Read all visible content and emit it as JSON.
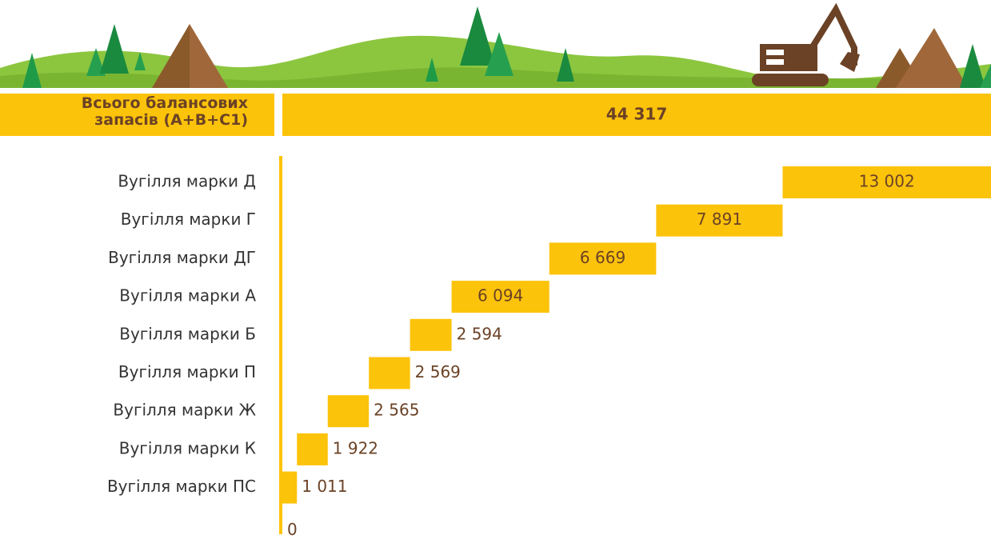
{
  "chart_data": {
    "type": "waterfall",
    "total": {
      "label": "Всього балансових запасів (А+В+С1)",
      "value": 44317,
      "value_label": "44 317"
    },
    "categories": [
      "Вугілля марки Д",
      "Вугілля марки Г",
      "Вугілля марки ДГ",
      "Вугілля марки А",
      "Вугілля марки Б",
      "Вугілля марки П",
      "Вугілля марки Ж",
      "Вугілля марки К",
      "Вугілля марки ПС"
    ],
    "values": [
      13002,
      7891,
      6669,
      6094,
      2594,
      2569,
      2565,
      1922,
      1011
    ],
    "value_labels": [
      "13 002",
      "7 891",
      "6 669",
      "6 094",
      "2 594",
      "2 569",
      "2 565",
      "1 922",
      "1 011"
    ],
    "color": "#fcc30b",
    "xlim": [
      0,
      44317
    ],
    "xticks": [
      0
    ]
  }
}
